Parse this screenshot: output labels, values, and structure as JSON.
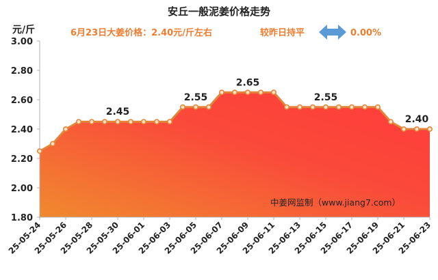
{
  "header": {
    "title": "安丘一般泥姜价格走势",
    "price_text": "6月23日大姜价格：2.40元/斤左右",
    "compare_text": "较昨日持平",
    "change_text": "0.00%",
    "arrow_icon": "left-right-arrow-icon",
    "arrow_color": "#5B9BD5"
  },
  "watermark": "中姜网监制（www.jiang7.com）",
  "colors": {
    "line": "#E2853A",
    "fill_top": "#FF3B3B",
    "fill_bottom": "#F08A2E",
    "accent_text": "#ED7D31"
  },
  "chart_data": {
    "type": "area",
    "title": "安丘一般泥姜价格走势",
    "ylabel": "元/斤",
    "xlabel": "",
    "ylim": [
      1.8,
      3.0
    ],
    "yticks": [
      "3.00",
      "2.80",
      "2.60",
      "2.40",
      "2.20",
      "2.00",
      "1.80"
    ],
    "x": [
      "25-05-24",
      "25-05-25",
      "25-05-26",
      "25-05-27",
      "25-05-28",
      "25-05-29",
      "25-05-30",
      "25-05-31",
      "25-06-01",
      "25-06-02",
      "25-06-03",
      "25-06-04",
      "25-06-05",
      "25-06-06",
      "25-06-07",
      "25-06-08",
      "25-06-09",
      "25-06-10",
      "25-06-11",
      "25-06-12",
      "25-06-13",
      "25-06-14",
      "25-06-15",
      "25-06-16",
      "25-06-17",
      "25-06-18",
      "25-06-19",
      "25-06-20",
      "25-06-21",
      "25-06-22",
      "25-06-23"
    ],
    "xtick_labels": [
      "25-05-24",
      "25-05-26",
      "25-05-28",
      "25-05-30",
      "25-06-01",
      "25-06-03",
      "25-06-05",
      "25-06-07",
      "25-06-09",
      "25-06-11",
      "25-06-13",
      "25-06-15",
      "25-06-17",
      "25-06-19",
      "25-06-21",
      "25-06-23"
    ],
    "values": [
      2.25,
      2.3,
      2.4,
      2.45,
      2.45,
      2.45,
      2.45,
      2.45,
      2.45,
      2.45,
      2.45,
      2.55,
      2.55,
      2.55,
      2.65,
      2.65,
      2.65,
      2.65,
      2.65,
      2.55,
      2.55,
      2.55,
      2.55,
      2.55,
      2.55,
      2.55,
      2.55,
      2.45,
      2.4,
      2.4,
      2.4
    ],
    "data_labels": [
      {
        "x": "25-05-30",
        "y": 2.45,
        "text": "2.45"
      },
      {
        "x": "25-06-05",
        "y": 2.55,
        "text": "2.55"
      },
      {
        "x": "25-06-09",
        "y": 2.65,
        "text": "2.65"
      },
      {
        "x": "25-06-15",
        "y": 2.55,
        "text": "2.55"
      },
      {
        "x": "25-06-22",
        "y": 2.4,
        "text": "2.40"
      }
    ],
    "grid": false
  }
}
